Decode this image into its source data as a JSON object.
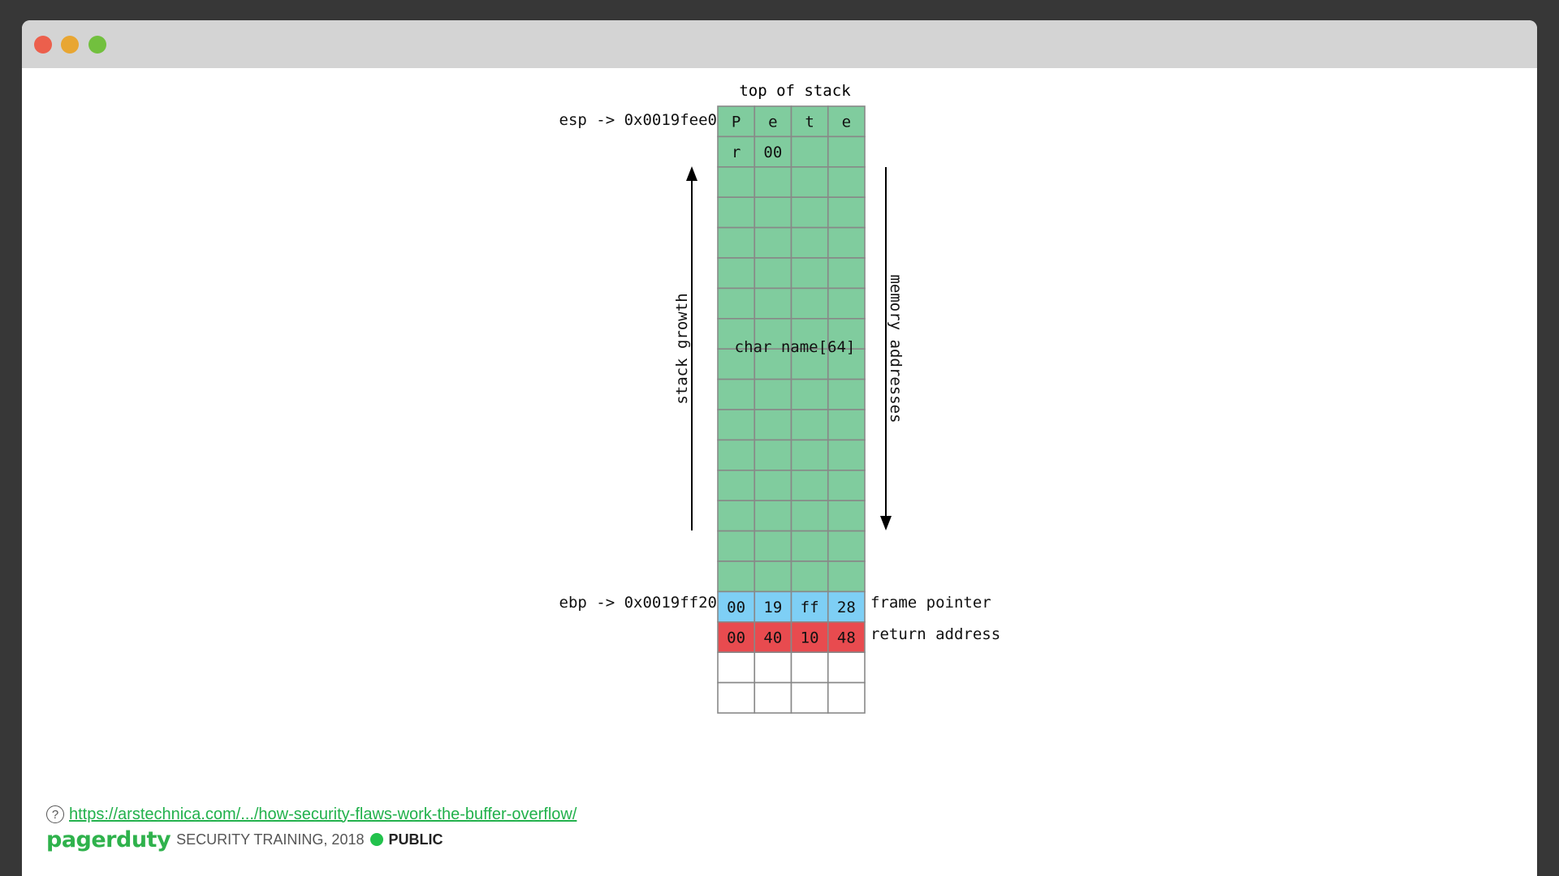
{
  "diagram": {
    "top_label": "top of stack",
    "esp_label": "esp -> 0x0019fee0",
    "ebp_label": "ebp -> 0x0019ff20",
    "buffer_label": "char name[64]",
    "stack_growth_label": "stack growth",
    "memory_addresses_label": "memory addresses",
    "frame_pointer_label": "frame pointer",
    "return_address_label": "return address",
    "rows": [
      {
        "kind": "buffer",
        "cells": [
          "P",
          "e",
          "t",
          "e"
        ]
      },
      {
        "kind": "buffer",
        "cells": [
          "r",
          "00",
          "",
          ""
        ]
      },
      {
        "kind": "buffer",
        "cells": [
          "",
          "",
          "",
          ""
        ]
      },
      {
        "kind": "buffer",
        "cells": [
          "",
          "",
          "",
          ""
        ]
      },
      {
        "kind": "buffer",
        "cells": [
          "",
          "",
          "",
          ""
        ]
      },
      {
        "kind": "buffer",
        "cells": [
          "",
          "",
          "",
          ""
        ]
      },
      {
        "kind": "buffer",
        "cells": [
          "",
          "",
          "",
          ""
        ]
      },
      {
        "kind": "buffer",
        "cells": [
          "",
          "",
          "",
          ""
        ]
      },
      {
        "kind": "buffer",
        "cells": [
          "",
          "",
          "",
          ""
        ]
      },
      {
        "kind": "buffer",
        "cells": [
          "",
          "",
          "",
          ""
        ]
      },
      {
        "kind": "buffer",
        "cells": [
          "",
          "",
          "",
          ""
        ]
      },
      {
        "kind": "buffer",
        "cells": [
          "",
          "",
          "",
          ""
        ]
      },
      {
        "kind": "buffer",
        "cells": [
          "",
          "",
          "",
          ""
        ]
      },
      {
        "kind": "buffer",
        "cells": [
          "",
          "",
          "",
          ""
        ]
      },
      {
        "kind": "buffer",
        "cells": [
          "",
          "",
          "",
          ""
        ]
      },
      {
        "kind": "buffer",
        "cells": [
          "",
          "",
          "",
          ""
        ]
      },
      {
        "kind": "frame",
        "cells": [
          "00",
          "19",
          "ff",
          "28"
        ]
      },
      {
        "kind": "ret",
        "cells": [
          "00",
          "40",
          "10",
          "48"
        ]
      },
      {
        "kind": "empty",
        "cells": [
          "",
          "",
          "",
          ""
        ]
      },
      {
        "kind": "empty",
        "cells": [
          "",
          "",
          "",
          ""
        ]
      }
    ],
    "colors": {
      "buffer": "#80cc9e",
      "frame": "#7ecff5",
      "ret": "#e84b4f",
      "empty": "#ffffff",
      "grid": "#888888"
    }
  },
  "footer": {
    "source_url": "https://arstechnica.com/.../how-security-flaws-work-the-buffer-overflow/",
    "brand": "pagerduty",
    "training": "SECURITY TRAINING, 2018",
    "classification": "PUBLIC"
  }
}
